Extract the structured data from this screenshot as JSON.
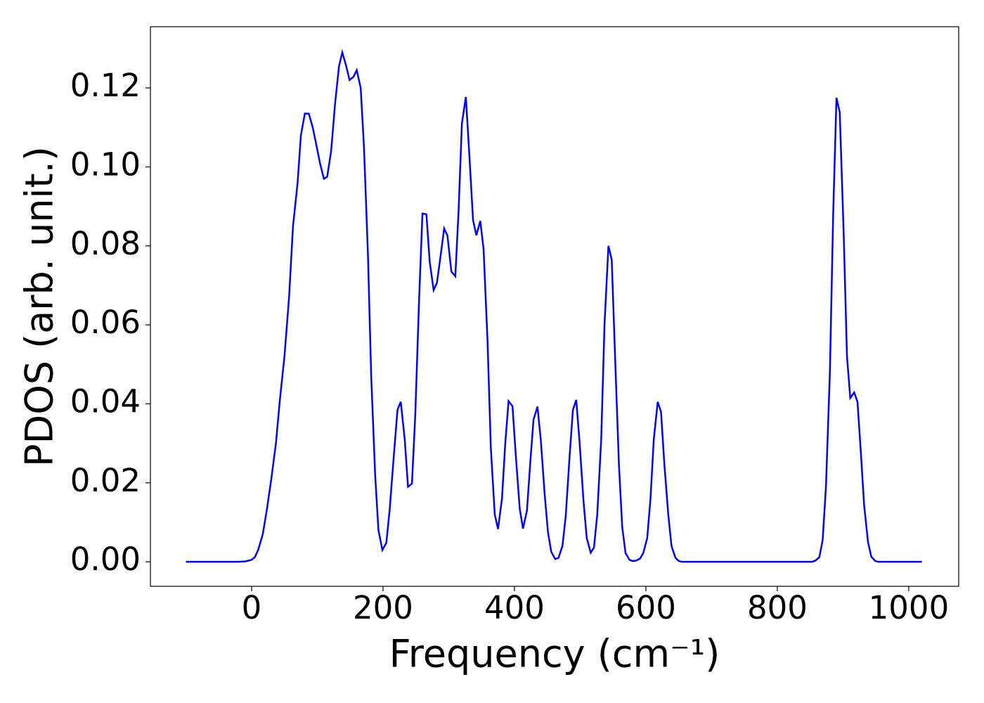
{
  "chart_data": {
    "type": "line",
    "x_label": "Frequency (cm⁻¹)",
    "y_label": "PDOS (arb. unit.)",
    "x": [
      -100,
      -20,
      -10,
      0,
      5,
      10,
      17,
      23,
      30,
      37,
      43,
      50,
      57,
      63,
      70,
      75,
      81,
      87,
      93,
      98,
      104,
      110,
      115,
      121,
      127,
      133,
      138,
      144,
      149,
      155,
      160,
      166,
      171,
      177,
      182,
      188,
      193,
      199,
      205,
      210,
      216,
      222,
      227,
      233,
      238,
      244,
      249,
      255,
      260,
      266,
      271,
      277,
      282,
      288,
      293,
      298,
      304,
      310,
      315,
      320,
      326,
      331,
      337,
      342,
      348,
      353,
      359,
      364,
      370,
      375,
      381,
      386,
      391,
      397,
      402,
      408,
      413,
      419,
      424,
      429,
      435,
      440,
      446,
      451,
      456,
      462,
      467,
      473,
      478,
      484,
      489,
      494,
      499,
      505,
      510,
      516,
      521,
      526,
      532,
      537,
      543,
      548,
      553,
      559,
      564,
      569,
      575,
      580,
      585,
      591,
      596,
      602,
      607,
      612,
      618,
      623,
      628,
      634,
      639,
      645,
      650,
      655,
      853,
      858,
      864,
      869,
      874,
      880,
      885,
      890,
      895,
      901,
      906,
      911,
      917,
      922,
      927,
      932,
      938,
      943,
      949,
      954,
      1020
    ],
    "series": [
      {
        "color": "#0000ff",
        "values": [
          0,
          0,
          0.0001,
          0.0005,
          0.0012,
          0.003,
          0.007,
          0.013,
          0.021,
          0.03,
          0.041,
          0.052,
          0.067,
          0.085,
          0.096,
          0.108,
          0.1135,
          0.1135,
          0.11,
          0.106,
          0.101,
          0.097,
          0.0975,
          0.104,
          0.116,
          0.1255,
          0.129,
          0.1255,
          0.122,
          0.1228,
          0.1245,
          0.12,
          0.105,
          0.078,
          0.047,
          0.022,
          0.008,
          0.003,
          0.0048,
          0.013,
          0.026,
          0.0385,
          0.0405,
          0.031,
          0.019,
          0.0198,
          0.037,
          0.067,
          0.0882,
          0.088,
          0.076,
          0.0688,
          0.0706,
          0.078,
          0.0844,
          0.0826,
          0.0735,
          0.0723,
          0.089,
          0.111,
          0.1177,
          0.104,
          0.0865,
          0.0827,
          0.0863,
          0.0792,
          0.056,
          0.029,
          0.012,
          0.0083,
          0.016,
          0.03,
          0.0407,
          0.0394,
          0.027,
          0.0135,
          0.0084,
          0.013,
          0.025,
          0.036,
          0.0393,
          0.031,
          0.017,
          0.0075,
          0.0025,
          0.0007,
          0.001,
          0.004,
          0.0115,
          0.027,
          0.0385,
          0.041,
          0.0305,
          0.0155,
          0.006,
          0.0023,
          0.0036,
          0.012,
          0.031,
          0.06,
          0.08,
          0.0765,
          0.0525,
          0.0245,
          0.0088,
          0.0022,
          0.0005,
          0.0002,
          0.0003,
          0.0008,
          0.0022,
          0.006,
          0.016,
          0.031,
          0.0405,
          0.038,
          0.025,
          0.012,
          0.004,
          0.001,
          0.0002,
          0,
          0,
          0.0003,
          0.0012,
          0.0055,
          0.019,
          0.048,
          0.088,
          0.1175,
          0.1138,
          0.083,
          0.052,
          0.0415,
          0.0429,
          0.0405,
          0.028,
          0.0145,
          0.005,
          0.0013,
          0.0002,
          0,
          0
        ]
      }
    ],
    "xlim": [
      -154,
      1076
    ],
    "ylim": [
      -0.0062,
      0.1355
    ],
    "xticks": [
      0,
      200,
      400,
      600,
      800,
      1000
    ],
    "yticks": [
      {
        "value": 0,
        "label": "0.00"
      },
      {
        "value": 0.02,
        "label": "0.02"
      },
      {
        "value": 0.04,
        "label": "0.04"
      },
      {
        "value": 0.06,
        "label": "0.06"
      },
      {
        "value": 0.08,
        "label": "0.08"
      },
      {
        "value": 0.1,
        "label": "0.10"
      },
      {
        "value": 0.12,
        "label": "0.12"
      }
    ],
    "grid": false
  }
}
